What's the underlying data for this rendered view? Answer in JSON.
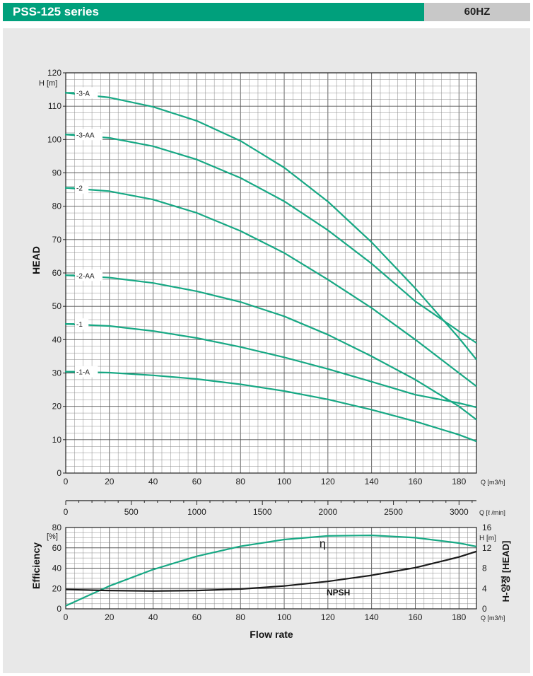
{
  "header": {
    "title": "PSS-125 series",
    "frequency": "60HZ",
    "accent_color": "#00a07c",
    "freq_box_color": "#c8c8c8"
  },
  "labels": {
    "head_axis": "HEAD",
    "head_unit": "H [m]",
    "q_unit_m3h": "Q [m3/h]",
    "q_unit_lmin": "Q [ℓ /min]",
    "efficiency_axis": "Efficiency",
    "efficiency_unit": "[%]",
    "right_axis": "H-양정 [HEAD]",
    "right_unit": "H [m]",
    "flow_rate": "Flow rate",
    "eta": "η",
    "npsh": "NPSH"
  },
  "chart_data": [
    {
      "type": "line",
      "name": "head-curves",
      "xlabel": "Q [m3/h]",
      "ylabel": "HEAD",
      "xlim": [
        0,
        188
      ],
      "ylim": [
        0,
        120
      ],
      "x_ticks": [
        0,
        20,
        40,
        60,
        80,
        100,
        120,
        140,
        160,
        180
      ],
      "y_ticks": [
        0,
        10,
        20,
        30,
        40,
        50,
        60,
        70,
        80,
        90,
        100,
        110,
        120
      ],
      "grid": true,
      "line_color": "#17a884",
      "series": [
        {
          "name": "-3-A",
          "x": [
            0,
            20,
            40,
            60,
            80,
            100,
            120,
            140,
            160,
            180,
            188
          ],
          "y": [
            114,
            112.6,
            109.8,
            105.6,
            99.6,
            91.6,
            81.4,
            69.2,
            55.4,
            40.5,
            34
          ]
        },
        {
          "name": "-3-AA",
          "x": [
            0,
            20,
            40,
            60,
            80,
            100,
            120,
            140,
            160,
            180,
            188
          ],
          "y": [
            101.5,
            100.5,
            98,
            94,
            88.5,
            81.5,
            72.8,
            62.8,
            51.5,
            42.5,
            39
          ]
        },
        {
          "name": "-2",
          "x": [
            0,
            20,
            40,
            60,
            80,
            100,
            120,
            140,
            160,
            180,
            188
          ],
          "y": [
            85.5,
            84.5,
            82,
            78,
            72.6,
            66,
            58,
            49.5,
            40,
            30,
            26
          ]
        },
        {
          "name": "-2-AA",
          "x": [
            0,
            20,
            40,
            60,
            80,
            100,
            120,
            140,
            160,
            180,
            188
          ],
          "y": [
            59.3,
            58.6,
            57,
            54.5,
            51.3,
            47,
            41.5,
            35,
            28,
            20,
            16
          ]
        },
        {
          "name": "-1",
          "x": [
            0,
            20,
            40,
            60,
            80,
            100,
            120,
            140,
            160,
            180,
            188
          ],
          "y": [
            44.7,
            44.1,
            42.6,
            40.5,
            37.8,
            34.7,
            31.2,
            27.4,
            23.5,
            21,
            19.7
          ]
        },
        {
          "name": "-1-A",
          "x": [
            0,
            20,
            40,
            60,
            80,
            100,
            120,
            140,
            160,
            180,
            188
          ],
          "y": [
            30.4,
            30.1,
            29.3,
            28.2,
            26.6,
            24.6,
            22.1,
            19,
            15.5,
            11.5,
            9.5
          ]
        }
      ]
    },
    {
      "type": "line",
      "name": "secondary-flow-scale",
      "xlabel": "Q [ℓ /min]",
      "xlim": [
        0,
        3133
      ],
      "x_ticks": [
        0,
        500,
        1000,
        1500,
        2000,
        2500,
        3000
      ]
    },
    {
      "type": "line",
      "name": "efficiency-npsh",
      "xlabel": "Flow rate",
      "ylabel": "Efficiency",
      "xlim": [
        0,
        188
      ],
      "ylim": [
        0,
        80
      ],
      "y2lim": [
        0,
        16
      ],
      "x_ticks": [
        0,
        20,
        40,
        60,
        80,
        100,
        120,
        140,
        160,
        180
      ],
      "y_ticks": [
        0,
        20,
        40,
        60,
        80
      ],
      "y2_ticks": [
        0,
        4,
        8,
        12,
        16
      ],
      "grid": true,
      "series": [
        {
          "name": "η",
          "axis": "left",
          "color": "#17a884",
          "x": [
            0,
            20,
            40,
            60,
            80,
            100,
            120,
            140,
            160,
            180,
            188
          ],
          "y": [
            3,
            22.5,
            38.7,
            51.7,
            61.5,
            68.2,
            71.7,
            72.3,
            70,
            64.7,
            61.3
          ]
        },
        {
          "name": "NPSH",
          "axis": "right",
          "color": "#1a1a1a",
          "x": [
            0,
            20,
            40,
            60,
            80,
            100,
            120,
            140,
            160,
            180,
            188
          ],
          "y": [
            3.8,
            3.6,
            3.5,
            3.6,
            3.9,
            4.5,
            5.4,
            6.6,
            8.1,
            10.2,
            11.3
          ]
        }
      ]
    }
  ]
}
